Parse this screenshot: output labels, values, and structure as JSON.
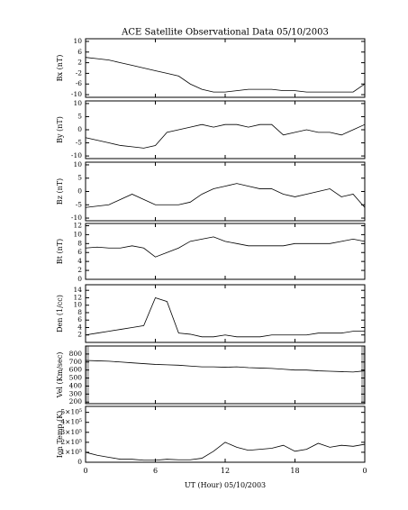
{
  "chart_data": [
    {
      "type": "line",
      "title": "ACE Satellite Observational Data   05/10/2003",
      "ylabel": "Bx (nT)",
      "color": "#000000",
      "x": [
        0,
        1,
        2,
        3,
        4,
        5,
        6,
        7,
        8,
        9,
        10,
        11,
        12,
        13,
        14,
        15,
        16,
        17,
        18,
        19,
        20,
        21,
        22,
        23,
        24
      ],
      "xlim": [
        0,
        24
      ],
      "values": [
        4,
        3.5,
        3,
        2,
        1,
        0,
        -1,
        -2,
        -3,
        -6,
        -8,
        -9,
        -9,
        -8.5,
        -8,
        -8,
        -8,
        -8.5,
        -8.5,
        -9,
        -9,
        -9,
        -9,
        -9,
        -6
      ],
      "ylim": [
        -11,
        11
      ],
      "yticks": [
        -10,
        -6,
        -2,
        2,
        6,
        10
      ]
    },
    {
      "type": "line",
      "ylabel": "By (nT)",
      "color": "#000000",
      "x": [
        0,
        1,
        2,
        3,
        4,
        5,
        6,
        7,
        8,
        9,
        10,
        11,
        12,
        13,
        14,
        15,
        16,
        17,
        18,
        19,
        20,
        21,
        22,
        23,
        24
      ],
      "xlim": [
        0,
        24
      ],
      "values": [
        -3,
        -4,
        -5,
        -6,
        -6.5,
        -7,
        -6,
        -1,
        0,
        1,
        2,
        1,
        2,
        2,
        1,
        2,
        2,
        -2,
        -1,
        0,
        -1,
        -1,
        -2,
        0,
        2
      ],
      "ylim": [
        -11,
        11
      ],
      "yticks": [
        -10,
        -5,
        0,
        5,
        10
      ]
    },
    {
      "type": "line",
      "ylabel": "Bz (nT)",
      "color": "#000000",
      "x": [
        0,
        1,
        2,
        3,
        4,
        5,
        6,
        7,
        8,
        9,
        10,
        11,
        12,
        13,
        14,
        15,
        16,
        17,
        18,
        19,
        20,
        21,
        22,
        23,
        24
      ],
      "xlim": [
        0,
        24
      ],
      "values": [
        -6,
        -5.5,
        -5,
        -3,
        -1,
        -3,
        -5,
        -5,
        -5,
        -4,
        -1,
        1,
        2,
        3,
        2,
        1,
        1,
        -1,
        -2,
        -1,
        0,
        1,
        -2,
        -1,
        -6
      ],
      "ylim": [
        -11,
        11
      ],
      "yticks": [
        -10,
        -5,
        0,
        5,
        10
      ]
    },
    {
      "type": "line",
      "ylabel": "Bt (nT)",
      "color": "#000000",
      "x": [
        0,
        1,
        2,
        3,
        4,
        5,
        6,
        7,
        8,
        9,
        10,
        11,
        12,
        13,
        14,
        15,
        16,
        17,
        18,
        19,
        20,
        21,
        22,
        23,
        24
      ],
      "xlim": [
        0,
        24
      ],
      "values": [
        7,
        7.2,
        7,
        7,
        7.5,
        7,
        5,
        6,
        7,
        8.5,
        9,
        9.5,
        8.5,
        8,
        7.5,
        7.5,
        7.5,
        7.5,
        8,
        8,
        8,
        8,
        8.5,
        9,
        8.5
      ],
      "ylim": [
        0,
        12.5
      ],
      "yticks": [
        0,
        2,
        4,
        6,
        8,
        10,
        12
      ]
    },
    {
      "type": "line",
      "ylabel": "Den (1/cc)",
      "color": "#000000",
      "x": [
        0,
        1,
        2,
        3,
        4,
        5,
        6,
        7,
        8,
        9,
        10,
        11,
        12,
        13,
        14,
        15,
        16,
        17,
        18,
        19,
        20,
        21,
        22,
        23,
        24
      ],
      "xlim": [
        0,
        24
      ],
      "values": [
        2,
        2.5,
        3,
        3.5,
        4,
        4.5,
        12,
        11,
        2.5,
        2.2,
        1.5,
        1.5,
        2,
        1.5,
        1.5,
        1.5,
        2,
        2,
        2,
        2,
        2.5,
        2.5,
        2.5,
        3,
        3
      ],
      "ylim": [
        0,
        15.5
      ],
      "yticks": [
        2,
        4,
        6,
        8,
        10,
        12,
        14
      ]
    },
    {
      "type": "line",
      "ylabel": "Vel (Km/sec)",
      "color": "#000000",
      "x": [
        0,
        1,
        2,
        3,
        4,
        5,
        6,
        7,
        8,
        9,
        10,
        11,
        12,
        13,
        14,
        15,
        16,
        17,
        18,
        19,
        20,
        21,
        22,
        23,
        24
      ],
      "xlim": [
        0,
        24
      ],
      "values": [
        720,
        715,
        710,
        700,
        690,
        680,
        670,
        665,
        660,
        650,
        640,
        640,
        635,
        640,
        630,
        625,
        620,
        610,
        600,
        600,
        590,
        585,
        580,
        575,
        590
      ],
      "ylim": [
        180,
        900
      ],
      "yticks": [
        200,
        300,
        400,
        500,
        600,
        700,
        800
      ]
    },
    {
      "type": "line",
      "ylabel": "Ion Temp (K)",
      "color": "#000000",
      "xlabel": "UT (Hour)  05/10/2003",
      "x": [
        0,
        1,
        2,
        3,
        4,
        5,
        6,
        7,
        8,
        9,
        10,
        11,
        12,
        13,
        14,
        15,
        16,
        17,
        18,
        19,
        20,
        21,
        22,
        23,
        24
      ],
      "xlim": [
        0,
        24
      ],
      "xticks": [
        0,
        6,
        12,
        18,
        {
          "value": 24,
          "label": "0"
        }
      ],
      "values": [
        100000,
        70000,
        50000,
        30000,
        30000,
        20000,
        20000,
        30000,
        25000,
        25000,
        40000,
        110000,
        200000,
        150000,
        120000,
        130000,
        140000,
        170000,
        110000,
        130000,
        190000,
        150000,
        170000,
        160000,
        180000
      ],
      "ylim": [
        0,
        560000
      ],
      "yticks": [
        0,
        {
          "value": 100000,
          "label": "1×10⁵"
        },
        {
          "value": 200000,
          "label": "2×10⁵"
        },
        {
          "value": 300000,
          "label": "3×10⁵"
        },
        {
          "value": 400000,
          "label": "4×10⁵"
        },
        {
          "value": 500000,
          "label": "5×10⁵"
        }
      ]
    }
  ]
}
